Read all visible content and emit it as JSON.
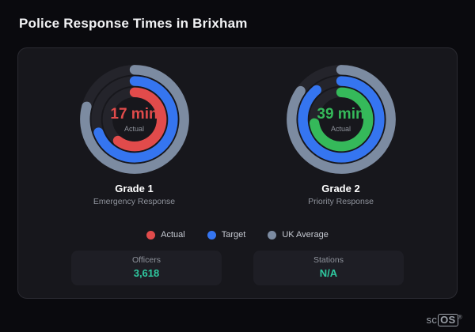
{
  "page": {
    "title": "Police Response Times in Brixham",
    "brand": {
      "prefix": "sc",
      "suffix": "OS",
      "reg": "®"
    }
  },
  "chart_data": {
    "type": "radial-gauge",
    "title": "Police Response Times in Brixham",
    "value_accent": "#2fc79f",
    "track_color": "#24242b",
    "gauges": [
      {
        "title": "Grade 1",
        "subtitle": "Emergency Response",
        "value_label": "17 min",
        "value_sublabel": "Actual",
        "value_color": "#e14b4b",
        "rings": [
          {
            "name": "UK Average",
            "color": "#7c8ba1",
            "sweep_deg": 285
          },
          {
            "name": "Target",
            "color": "#3575f0",
            "sweep_deg": 250
          },
          {
            "name": "Actual",
            "color": "#e14b4b",
            "sweep_deg": 218
          }
        ]
      },
      {
        "title": "Grade 2",
        "subtitle": "Priority Response",
        "value_label": "39 min",
        "value_sublabel": "Actual",
        "value_color": "#35b95a",
        "rings": [
          {
            "name": "UK Average",
            "color": "#7c8ba1",
            "sweep_deg": 305
          },
          {
            "name": "Target",
            "color": "#3575f0",
            "sweep_deg": 320
          },
          {
            "name": "Actual",
            "color": "#35b95a",
            "sweep_deg": 262
          }
        ]
      }
    ],
    "legend": [
      {
        "label": "Actual",
        "color": "#e14b4b"
      },
      {
        "label": "Target",
        "color": "#3575f0"
      },
      {
        "label": "UK Average",
        "color": "#7c8ba1"
      }
    ],
    "stats": [
      {
        "label": "Officers",
        "value": "3,618"
      },
      {
        "label": "Stations",
        "value": "N/A"
      }
    ]
  }
}
